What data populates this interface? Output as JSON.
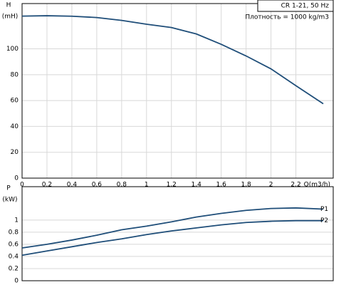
{
  "chart_data": [
    {
      "type": "line",
      "title": "CR 1-21, 50 Hz",
      "annotation": "Плотность = 1000 kg/m3",
      "y_label": "H",
      "y_unit": "(mH)",
      "x_label": "Q(m3/h)",
      "x": [
        0,
        0.2,
        0.4,
        0.6,
        0.8,
        1.0,
        1.2,
        1.4,
        1.6,
        1.8,
        2.0,
        2.2,
        2.42
      ],
      "values": [
        125.3,
        125.6,
        125.2,
        124.2,
        122.0,
        119.0,
        116.5,
        111.5,
        103.5,
        94.5,
        84.5,
        71.5,
        57.5
      ],
      "color": "#1f4e79",
      "xlim": [
        0,
        2.5
      ],
      "xticks": [
        0,
        0.2,
        0.4,
        0.6,
        0.8,
        1,
        1.2,
        1.4,
        1.6,
        1.8,
        2,
        2.2
      ],
      "ylim": [
        0,
        135
      ],
      "yticks": [
        0,
        20,
        40,
        60,
        80,
        100
      ],
      "grid": true
    },
    {
      "type": "line",
      "y_label": "P",
      "y_unit": "(kW)",
      "x": [
        0,
        0.2,
        0.4,
        0.6,
        0.8,
        1.0,
        1.2,
        1.4,
        1.6,
        1.8,
        2.0,
        2.2,
        2.42
      ],
      "series": [
        {
          "name": "P1",
          "color": "#1f4e79",
          "values": [
            0.54,
            0.6,
            0.67,
            0.75,
            0.84,
            0.9,
            0.97,
            1.05,
            1.11,
            1.16,
            1.19,
            1.2,
            1.18
          ]
        },
        {
          "name": "P2",
          "color": "#1f4e79",
          "values": [
            0.42,
            0.49,
            0.56,
            0.63,
            0.69,
            0.76,
            0.82,
            0.87,
            0.92,
            0.96,
            0.98,
            0.99,
            0.99
          ]
        }
      ],
      "xlim": [
        0,
        2.5
      ],
      "ylim": [
        0,
        1.55
      ],
      "yticks": [
        0,
        0.2,
        0.4,
        0.6,
        0.8,
        1
      ],
      "grid": true
    }
  ]
}
